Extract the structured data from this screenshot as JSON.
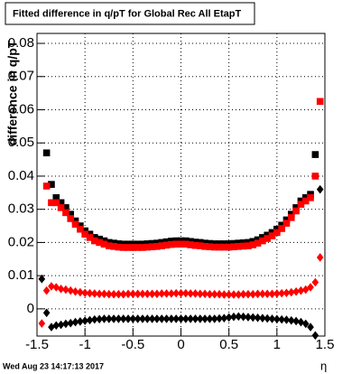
{
  "chart_data": {
    "type": "scatter",
    "title": "Fitted difference in q/pT for Global Rec All EtapT",
    "ylabel": "difference in q/pT",
    "xlabel": "η",
    "footer": "Wed Aug 23 14:17:13 2017",
    "x": [
      -1.45,
      -1.4,
      -1.35,
      -1.3,
      -1.25,
      -1.2,
      -1.15,
      -1.1,
      -1.05,
      -1,
      -0.95,
      -0.9,
      -0.85,
      -0.8,
      -0.75,
      -0.7,
      -0.65,
      -0.6,
      -0.55,
      -0.5,
      -0.45,
      -0.4,
      -0.35,
      -0.3,
      -0.25,
      -0.2,
      -0.15,
      -0.1,
      -0.05,
      0,
      0.05,
      0.1,
      0.15,
      0.2,
      0.25,
      0.3,
      0.35,
      0.4,
      0.45,
      0.5,
      0.55,
      0.6,
      0.65,
      0.7,
      0.75,
      0.8,
      0.85,
      0.9,
      0.95,
      1,
      1.05,
      1.1,
      1.15,
      1.2,
      1.25,
      1.3,
      1.35,
      1.4,
      1.45
    ],
    "series": [
      {
        "color": "#000000",
        "marker": "square",
        "values": [
          null,
          0.047,
          0.0375,
          0.0335,
          0.032,
          0.0305,
          0.0285,
          0.0265,
          0.025,
          0.0235,
          0.0225,
          0.0215,
          0.021,
          0.0205,
          0.02,
          0.0198,
          0.0196,
          0.0195,
          0.0195,
          0.0195,
          0.0195,
          0.0195,
          0.0196,
          0.0197,
          0.0198,
          0.02,
          0.0202,
          0.0204,
          0.0205,
          0.0205,
          0.0205,
          0.0203,
          0.0201,
          0.02,
          0.0198,
          0.0197,
          0.0196,
          0.0196,
          0.0196,
          0.0196,
          0.0197,
          0.0198,
          0.0199,
          0.02,
          0.0203,
          0.0208,
          0.0215,
          0.0222,
          0.023,
          0.024,
          0.0252,
          0.0268,
          0.0285,
          0.0305,
          0.0325,
          0.0335,
          0.0345,
          0.0465,
          null
        ]
      },
      {
        "color": "#ff0000",
        "marker": "square",
        "values": [
          null,
          0.037,
          0.032,
          0.032,
          0.0305,
          0.029,
          0.0272,
          0.0255,
          0.024,
          0.0225,
          0.0215,
          0.0205,
          0.02,
          0.0195,
          0.019,
          0.0188,
          0.0186,
          0.0185,
          0.0185,
          0.0185,
          0.0185,
          0.0185,
          0.0186,
          0.0187,
          0.0188,
          0.019,
          0.0192,
          0.0194,
          0.0195,
          0.0195,
          0.0195,
          0.0193,
          0.0191,
          0.019,
          0.0188,
          0.0187,
          0.0186,
          0.0186,
          0.0186,
          0.0186,
          0.0187,
          0.0188,
          0.0189,
          0.019,
          0.0193,
          0.0198,
          0.0205,
          0.0212,
          0.022,
          0.023,
          0.0242,
          0.0258,
          0.0275,
          0.0295,
          0.0315,
          0.0325,
          0.0335,
          0.04,
          0.0625
        ]
      },
      {
        "color": "#ff0000",
        "marker": "diamond",
        "values": [
          -0.0044,
          0.0055,
          0.0068,
          0.0065,
          0.006,
          0.0058,
          0.0055,
          0.0052,
          0.005,
          0.0048,
          0.0047,
          0.0046,
          0.0045,
          0.0045,
          0.0044,
          0.0044,
          0.0044,
          0.0044,
          0.0045,
          0.0045,
          0.0045,
          0.0045,
          0.0045,
          0.0045,
          0.0045,
          0.0046,
          0.0046,
          0.0046,
          0.0047,
          0.0047,
          0.0047,
          0.0046,
          0.0046,
          0.0045,
          0.0045,
          0.0044,
          0.0044,
          0.0044,
          0.0043,
          0.0043,
          0.0043,
          0.0043,
          0.0044,
          0.0044,
          0.0044,
          0.0045,
          0.0045,
          0.0045,
          0.0045,
          0.0046,
          0.0047,
          0.0048,
          0.005,
          0.0052,
          0.0055,
          0.0058,
          0.0065,
          0.008,
          0.0155
        ]
      },
      {
        "color": "#000000",
        "marker": "diamond",
        "values": [
          0.009,
          -0.0012,
          -0.0055,
          -0.005,
          -0.0048,
          -0.0045,
          -0.0043,
          -0.004,
          -0.0038,
          -0.0036,
          -0.0034,
          -0.0032,
          -0.0031,
          -0.003,
          -0.003,
          -0.003,
          -0.003,
          -0.003,
          -0.003,
          -0.003,
          -0.003,
          -0.003,
          -0.003,
          -0.003,
          -0.003,
          -0.003,
          -0.003,
          -0.003,
          -0.003,
          -0.003,
          -0.003,
          -0.003,
          -0.003,
          -0.003,
          -0.003,
          -0.003,
          -0.003,
          -0.0029,
          -0.0028,
          -0.0026,
          -0.0024,
          -0.0023,
          -0.0024,
          -0.0025,
          -0.0026,
          -0.0027,
          -0.0028,
          -0.0029,
          -0.003,
          -0.0031,
          -0.0032,
          -0.0033,
          -0.0035,
          -0.0037,
          -0.004,
          -0.0045,
          -0.0055,
          -0.008,
          0.036
        ]
      }
    ],
    "xlim": [
      -1.5,
      1.5
    ],
    "xticks": [
      -1.5,
      -1,
      -0.5,
      0,
      0.5,
      1,
      1.5
    ],
    "ylim": [
      -0.0082,
      0.083
    ],
    "yticks": [
      0,
      0.01,
      0.02,
      0.03,
      0.04,
      0.05,
      0.06,
      0.07,
      0.08
    ],
    "grid": true
  }
}
